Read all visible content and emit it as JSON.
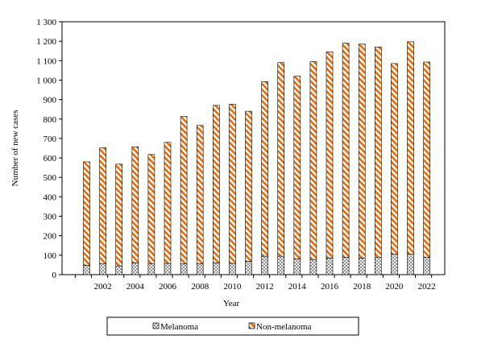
{
  "chart_data": {
    "type": "bar",
    "stacked": true,
    "xlabel": "Year",
    "ylabel": "Number of new cases",
    "ylim": [
      0,
      1300
    ],
    "yticks": [
      0,
      100,
      200,
      300,
      400,
      500,
      600,
      700,
      800,
      900,
      1000,
      1100,
      1200,
      1300
    ],
    "ytick_labels": [
      "0",
      "100",
      "200",
      "300",
      "400",
      "500",
      "600",
      "700",
      "800",
      "900",
      "1 000",
      "1 100",
      "1 200",
      "1 300"
    ],
    "categories": [
      "2001",
      "2002",
      "2003",
      "2004",
      "2005",
      "2006",
      "2007",
      "2008",
      "2009",
      "2010",
      "2011",
      "2012",
      "2013",
      "2014",
      "2015",
      "2016",
      "2017",
      "2018",
      "2019",
      "2020",
      "2021",
      "2022"
    ],
    "xtick_labels": [
      "2002",
      "2004",
      "2006",
      "2008",
      "2010",
      "2012",
      "2014",
      "2016",
      "2018",
      "2020",
      "2022"
    ],
    "grid": false,
    "legend_position": "bottom",
    "series": [
      {
        "name": "Melanoma",
        "pattern": "crosshatch",
        "color": "#555555",
        "values": [
          48,
          55,
          45,
          60,
          55,
          58,
          55,
          55,
          60,
          58,
          68,
          95,
          95,
          80,
          78,
          85,
          90,
          85,
          90,
          105,
          105,
          90
        ]
      },
      {
        "name": "Non-melanoma",
        "pattern": "diagonal-stripes",
        "color": "#e36c0a",
        "values": [
          532,
          597,
          523,
          597,
          563,
          622,
          758,
          712,
          810,
          818,
          772,
          897,
          995,
          940,
          1017,
          1060,
          1100,
          1100,
          1080,
          980,
          1092,
          1003
        ]
      }
    ]
  }
}
